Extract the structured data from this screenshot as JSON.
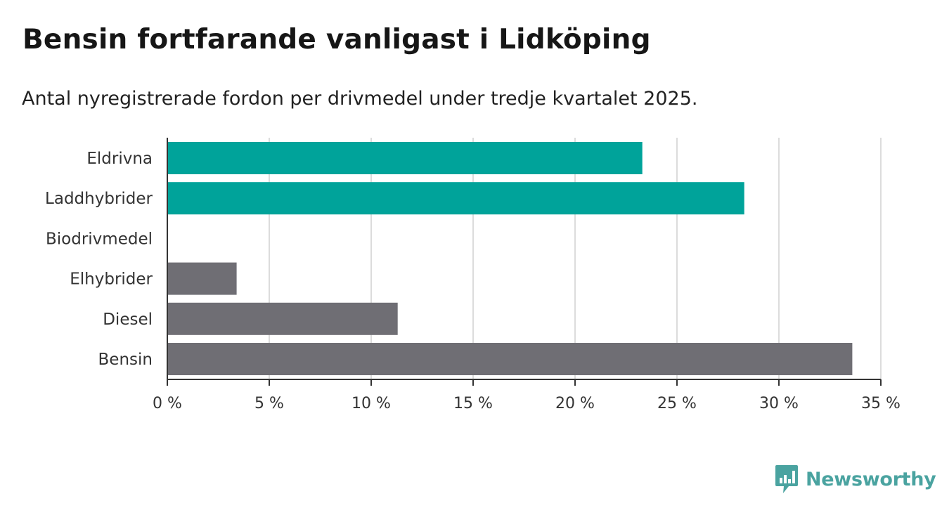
{
  "header": {
    "title": "Bensin fortfarande vanligast i Lidköping",
    "subtitle": "Antal nyregistrerade fordon per drivmedel under tredje kvartalet 2025."
  },
  "colors": {
    "teal": "#00a39a",
    "gray": "#6f6e74",
    "grid": "#dcdcdc",
    "axis": "#333333",
    "brand": "#4aa3a0"
  },
  "chart_data": {
    "type": "bar",
    "orientation": "horizontal",
    "categories": [
      "Eldrivna",
      "Laddhybrider",
      "Biodrivmedel",
      "Elhybrider",
      "Diesel",
      "Bensin"
    ],
    "values": [
      23.3,
      28.3,
      0,
      3.4,
      11.3,
      33.6
    ],
    "bar_colors": [
      "teal",
      "teal",
      "gray",
      "gray",
      "gray",
      "gray"
    ],
    "xlim": [
      0,
      35
    ],
    "ticks": [
      0,
      5,
      10,
      15,
      20,
      25,
      30,
      35
    ],
    "tick_labels": [
      "0 %",
      "5 %",
      "10 %",
      "15 %",
      "20 %",
      "25 %",
      "30 %",
      "35 %"
    ],
    "xlabel": "",
    "ylabel": "",
    "grid": true
  },
  "branding": {
    "logo_text": "Newsworthy",
    "logo_icon": "bar-chart-speech-icon"
  }
}
